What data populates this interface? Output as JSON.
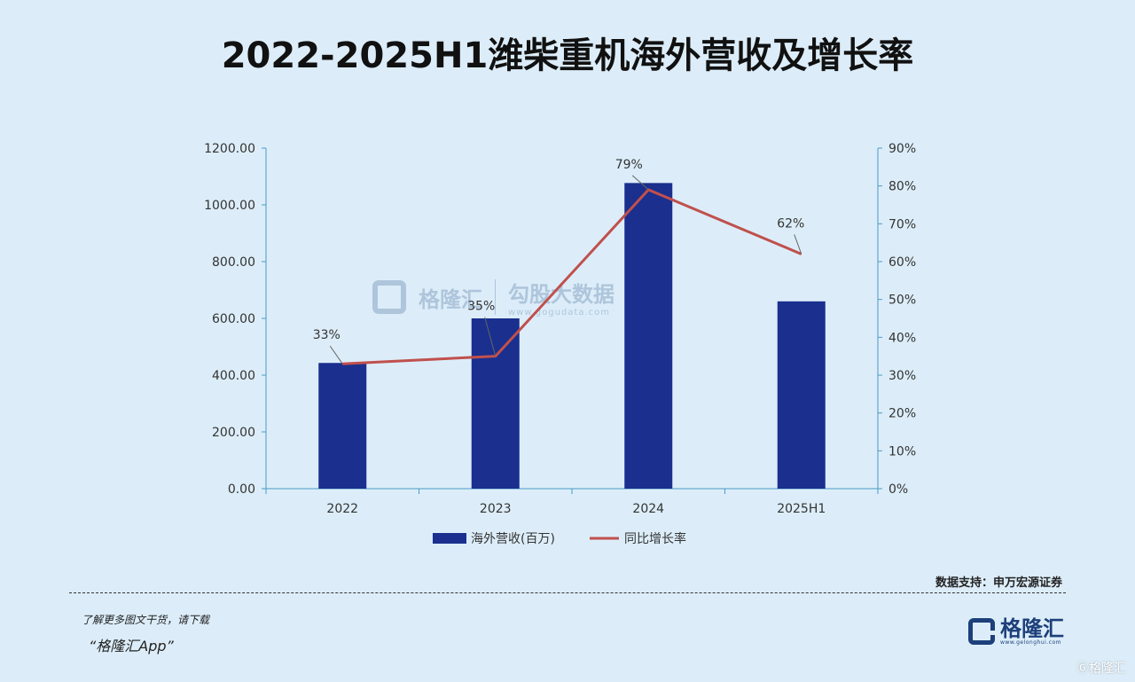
{
  "title": "2022-2025H1潍柴重机海外营收及增长率",
  "colors": {
    "bar": "#1a2f8e",
    "line": "#c0504d",
    "axis": "#4a9bc8",
    "background": "#dcedf9"
  },
  "chart_data": {
    "type": "bar",
    "categories": [
      "2022",
      "2023",
      "2024",
      "2025H1"
    ],
    "series": [
      {
        "name": "海外营收(百万)",
        "type": "bar",
        "axis": "left",
        "values": [
          443,
          600,
          1077,
          660
        ]
      },
      {
        "name": "同比增长率",
        "type": "line",
        "axis": "right",
        "values": [
          33,
          35,
          79,
          62
        ],
        "labels": [
          "33%",
          "35%",
          "79%",
          "62%"
        ]
      }
    ],
    "yleft": {
      "lim": [
        0,
        1200
      ],
      "ticks": [
        "0.00",
        "200.00",
        "400.00",
        "600.00",
        "800.00",
        "1000.00",
        "1200.00"
      ]
    },
    "yright": {
      "lim": [
        0,
        90
      ],
      "ticks": [
        "0%",
        "10%",
        "20%",
        "30%",
        "40%",
        "50%",
        "60%",
        "70%",
        "80%",
        "90%"
      ]
    },
    "legend": "bottom"
  },
  "watermark": {
    "name1": "格隆汇",
    "name2": "勾股大数据",
    "url": "www.gogudata.com"
  },
  "source": "数据支持：申万宏源证券",
  "promo": {
    "line1": "了解更多图文干货，请下载",
    "line2": "“格隆汇App”"
  },
  "brand": {
    "name": "格隆汇",
    "url": "www.gelonghui.com"
  },
  "corner": "Ⓖ格隆汇"
}
